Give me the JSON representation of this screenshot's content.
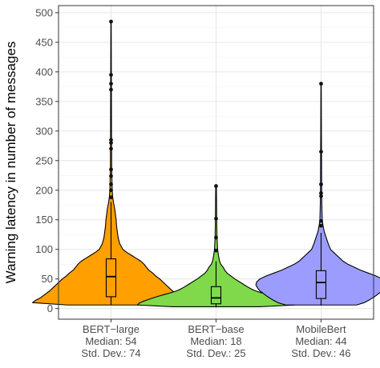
{
  "chart_data": {
    "type": "violin",
    "ylabel": "Warning latency in number of messages",
    "xlabel": "",
    "ylim": [
      -18,
      512
    ],
    "yticks": [
      0,
      50,
      100,
      150,
      200,
      250,
      300,
      350,
      400,
      450,
      500
    ],
    "grid": true,
    "legend": "none",
    "groups": [
      {
        "name": "BERT−large",
        "lines": [
          "BERT−large",
          "Median: 54",
          "Std. Dev.: 74"
        ],
        "color": "#ff9f00",
        "median": 54,
        "q1": 20,
        "q3": 84,
        "whisker_low": 6,
        "whisker_high": 180,
        "outliers": [
          188,
          200,
          210,
          224,
          235,
          270,
          280,
          285,
          370,
          380,
          395,
          485
        ],
        "density": [
          [
            6,
            0.55
          ],
          [
            10,
            1.0
          ],
          [
            14,
            0.96
          ],
          [
            18,
            0.9
          ],
          [
            22,
            0.86
          ],
          [
            26,
            0.82
          ],
          [
            30,
            0.78
          ],
          [
            35,
            0.74
          ],
          [
            40,
            0.7
          ],
          [
            45,
            0.66
          ],
          [
            50,
            0.62
          ],
          [
            55,
            0.57
          ],
          [
            60,
            0.53
          ],
          [
            65,
            0.48
          ],
          [
            70,
            0.45
          ],
          [
            75,
            0.42
          ],
          [
            80,
            0.38
          ],
          [
            85,
            0.32
          ],
          [
            90,
            0.26
          ],
          [
            95,
            0.2
          ],
          [
            100,
            0.15
          ],
          [
            110,
            0.11
          ],
          [
            120,
            0.09
          ],
          [
            130,
            0.08
          ],
          [
            140,
            0.07
          ],
          [
            150,
            0.065
          ],
          [
            160,
            0.055
          ],
          [
            170,
            0.045
          ],
          [
            180,
            0.03
          ],
          [
            190,
            0.02
          ],
          [
            200,
            0.015
          ],
          [
            225,
            0.01
          ],
          [
            250,
            0.008
          ],
          [
            300,
            0.006
          ],
          [
            350,
            0.005
          ],
          [
            400,
            0.004
          ],
          [
            450,
            0.003
          ],
          [
            485,
            0.002
          ]
        ]
      },
      {
        "name": "BERT−base",
        "lines": [
          "BERT−base",
          "Median: 18",
          "Std. Dev.: 25"
        ],
        "color": "#7fd94a",
        "median": 18,
        "q1": 8,
        "q3": 37,
        "whisker_low": 2,
        "whisker_high": 80,
        "outliers": [
          98,
          120,
          152,
          207
        ],
        "density": [
          [
            3,
            0.55
          ],
          [
            6,
            1.0
          ],
          [
            9,
            0.98
          ],
          [
            12,
            0.93
          ],
          [
            15,
            0.87
          ],
          [
            18,
            0.8
          ],
          [
            21,
            0.73
          ],
          [
            24,
            0.65
          ],
          [
            27,
            0.57
          ],
          [
            30,
            0.5
          ],
          [
            33,
            0.45
          ],
          [
            36,
            0.41
          ],
          [
            40,
            0.36
          ],
          [
            45,
            0.3
          ],
          [
            50,
            0.24
          ],
          [
            55,
            0.19
          ],
          [
            60,
            0.14
          ],
          [
            65,
            0.11
          ],
          [
            70,
            0.09
          ],
          [
            75,
            0.06
          ],
          [
            80,
            0.045
          ],
          [
            90,
            0.03
          ],
          [
            100,
            0.02
          ],
          [
            120,
            0.012
          ],
          [
            150,
            0.008
          ],
          [
            180,
            0.006
          ],
          [
            207,
            0.004
          ]
        ]
      },
      {
        "name": "MobileBert",
        "lines": [
          "MobileBert",
          "Median: 44",
          "Std. Dev.: 46"
        ],
        "color": "#9c9cff",
        "median": 44,
        "q1": 17,
        "q3": 64,
        "whisker_low": 5,
        "whisker_high": 128,
        "outliers": [
          140,
          148,
          190,
          195,
          210,
          265,
          380
        ],
        "density": [
          [
            6,
            0.45
          ],
          [
            10,
            0.55
          ],
          [
            15,
            0.62
          ],
          [
            20,
            0.68
          ],
          [
            25,
            0.73
          ],
          [
            30,
            0.78
          ],
          [
            35,
            0.81
          ],
          [
            40,
            0.83
          ],
          [
            45,
            0.82
          ],
          [
            50,
            0.78
          ],
          [
            55,
            0.7
          ],
          [
            60,
            0.6
          ],
          [
            65,
            0.5
          ],
          [
            70,
            0.42
          ],
          [
            75,
            0.34
          ],
          [
            80,
            0.28
          ],
          [
            85,
            0.24
          ],
          [
            90,
            0.2
          ],
          [
            95,
            0.16
          ],
          [
            100,
            0.12
          ],
          [
            110,
            0.09
          ],
          [
            120,
            0.065
          ],
          [
            130,
            0.04
          ],
          [
            140,
            0.025
          ],
          [
            150,
            0.015
          ],
          [
            175,
            0.01
          ],
          [
            200,
            0.008
          ],
          [
            250,
            0.006
          ],
          [
            300,
            0.004
          ],
          [
            350,
            0.003
          ],
          [
            380,
            0.002
          ]
        ]
      }
    ]
  }
}
